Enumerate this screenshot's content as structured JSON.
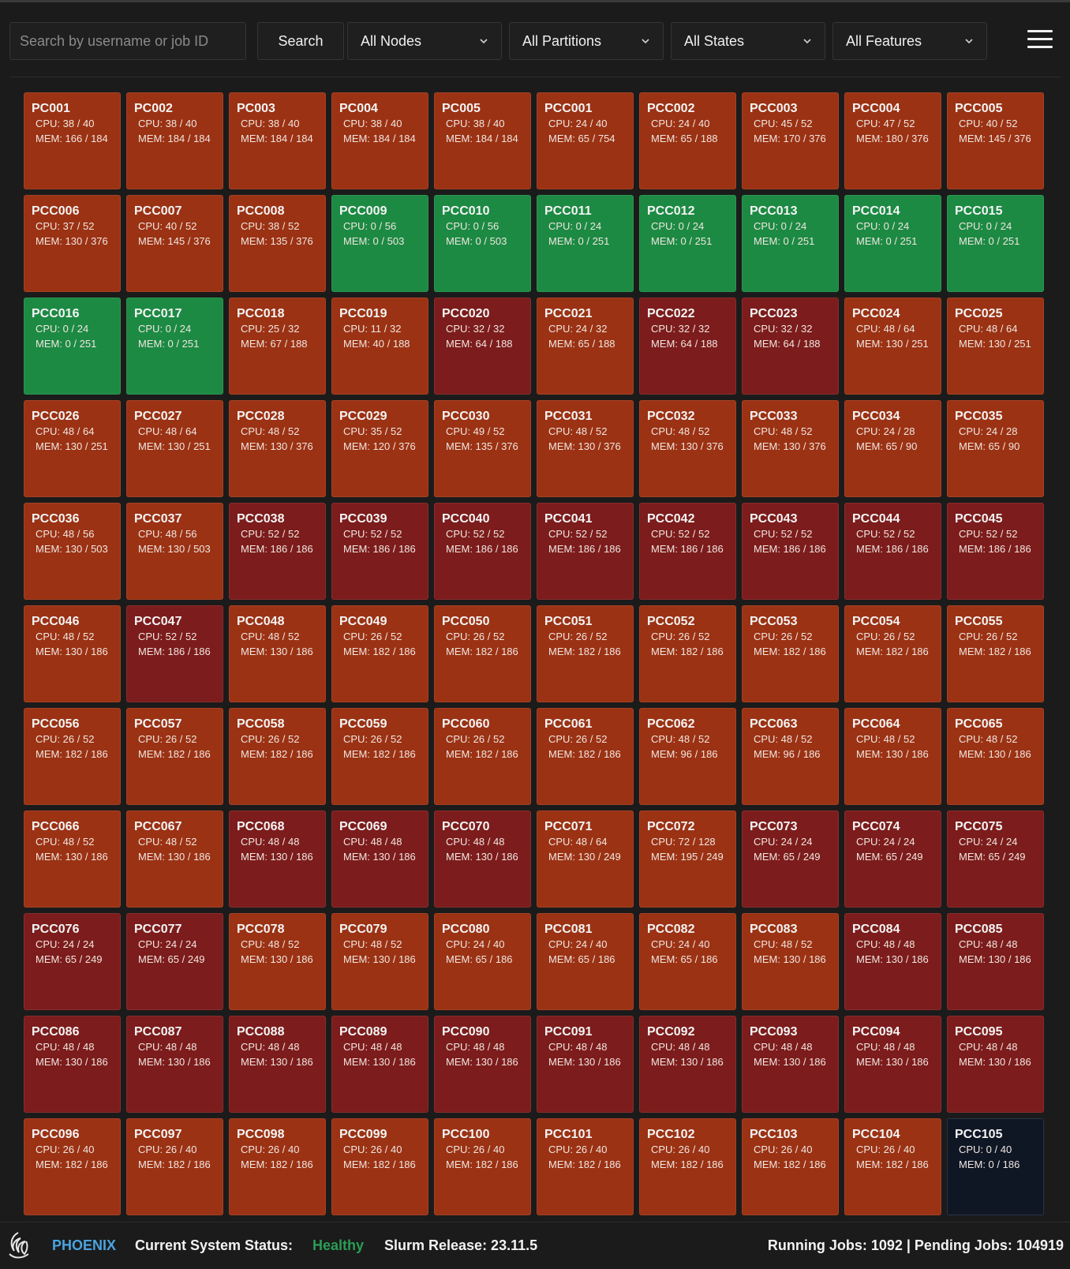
{
  "toolbar": {
    "search_placeholder": "Search by username or job ID",
    "search_label": "Search",
    "filters": [
      "All Nodes",
      "All Partitions",
      "All States",
      "All Features"
    ]
  },
  "colors": {
    "used": "#9b3214",
    "full": "#7c1c1c",
    "idle": "#1c8a43",
    "down": "#0f1725",
    "brand": "#4aa3df",
    "healthy": "#2a9d55"
  },
  "nodes": [
    {
      "name": "PC001",
      "cpu": "CPU: 38 / 40",
      "mem": "MEM: 166 / 184",
      "state": "used"
    },
    {
      "name": "PC002",
      "cpu": "CPU: 38 / 40",
      "mem": "MEM: 184 / 184",
      "state": "used"
    },
    {
      "name": "PC003",
      "cpu": "CPU: 38 / 40",
      "mem": "MEM: 184 / 184",
      "state": "used"
    },
    {
      "name": "PC004",
      "cpu": "CPU: 38 / 40",
      "mem": "MEM: 184 / 184",
      "state": "used"
    },
    {
      "name": "PC005",
      "cpu": "CPU: 38 / 40",
      "mem": "MEM: 184 / 184",
      "state": "used"
    },
    {
      "name": "PCC001",
      "cpu": "CPU: 24 / 40",
      "mem": "MEM: 65 / 754",
      "state": "used"
    },
    {
      "name": "PCC002",
      "cpu": "CPU: 24 / 40",
      "mem": "MEM: 65 / 188",
      "state": "used"
    },
    {
      "name": "PCC003",
      "cpu": "CPU: 45 / 52",
      "mem": "MEM: 170 / 376",
      "state": "used"
    },
    {
      "name": "PCC004",
      "cpu": "CPU: 47 / 52",
      "mem": "MEM: 180 / 376",
      "state": "used"
    },
    {
      "name": "PCC005",
      "cpu": "CPU: 40 / 52",
      "mem": "MEM: 145 / 376",
      "state": "used"
    },
    {
      "name": "PCC006",
      "cpu": "CPU: 37 / 52",
      "mem": "MEM: 130 / 376",
      "state": "used"
    },
    {
      "name": "PCC007",
      "cpu": "CPU: 40 / 52",
      "mem": "MEM: 145 / 376",
      "state": "used"
    },
    {
      "name": "PCC008",
      "cpu": "CPU: 38 / 52",
      "mem": "MEM: 135 / 376",
      "state": "used"
    },
    {
      "name": "PCC009",
      "cpu": "CPU: 0 / 56",
      "mem": "MEM: 0 / 503",
      "state": "idle"
    },
    {
      "name": "PCC010",
      "cpu": "CPU: 0 / 56",
      "mem": "MEM: 0 / 503",
      "state": "idle"
    },
    {
      "name": "PCC011",
      "cpu": "CPU: 0 / 24",
      "mem": "MEM: 0 / 251",
      "state": "idle"
    },
    {
      "name": "PCC012",
      "cpu": "CPU: 0 / 24",
      "mem": "MEM: 0 / 251",
      "state": "idle"
    },
    {
      "name": "PCC013",
      "cpu": "CPU: 0 / 24",
      "mem": "MEM: 0 / 251",
      "state": "idle"
    },
    {
      "name": "PCC014",
      "cpu": "CPU: 0 / 24",
      "mem": "MEM: 0 / 251",
      "state": "idle"
    },
    {
      "name": "PCC015",
      "cpu": "CPU: 0 / 24",
      "mem": "MEM: 0 / 251",
      "state": "idle"
    },
    {
      "name": "PCC016",
      "cpu": "CPU: 0 / 24",
      "mem": "MEM: 0 / 251",
      "state": "idle"
    },
    {
      "name": "PCC017",
      "cpu": "CPU: 0 / 24",
      "mem": "MEM: 0 / 251",
      "state": "idle"
    },
    {
      "name": "PCC018",
      "cpu": "CPU: 25 / 32",
      "mem": "MEM: 67 / 188",
      "state": "used"
    },
    {
      "name": "PCC019",
      "cpu": "CPU: 11 / 32",
      "mem": "MEM: 40 / 188",
      "state": "used"
    },
    {
      "name": "PCC020",
      "cpu": "CPU: 32 / 32",
      "mem": "MEM: 64 / 188",
      "state": "full"
    },
    {
      "name": "PCC021",
      "cpu": "CPU: 24 / 32",
      "mem": "MEM: 65 / 188",
      "state": "used"
    },
    {
      "name": "PCC022",
      "cpu": "CPU: 32 / 32",
      "mem": "MEM: 64 / 188",
      "state": "full"
    },
    {
      "name": "PCC023",
      "cpu": "CPU: 32 / 32",
      "mem": "MEM: 64 / 188",
      "state": "full"
    },
    {
      "name": "PCC024",
      "cpu": "CPU: 48 / 64",
      "mem": "MEM: 130 / 251",
      "state": "used"
    },
    {
      "name": "PCC025",
      "cpu": "CPU: 48 / 64",
      "mem": "MEM: 130 / 251",
      "state": "used"
    },
    {
      "name": "PCC026",
      "cpu": "CPU: 48 / 64",
      "mem": "MEM: 130 / 251",
      "state": "used"
    },
    {
      "name": "PCC027",
      "cpu": "CPU: 48 / 64",
      "mem": "MEM: 130 / 251",
      "state": "used"
    },
    {
      "name": "PCC028",
      "cpu": "CPU: 48 / 52",
      "mem": "MEM: 130 / 376",
      "state": "used"
    },
    {
      "name": "PCC029",
      "cpu": "CPU: 35 / 52",
      "mem": "MEM: 120 / 376",
      "state": "used"
    },
    {
      "name": "PCC030",
      "cpu": "CPU: 49 / 52",
      "mem": "MEM: 135 / 376",
      "state": "used"
    },
    {
      "name": "PCC031",
      "cpu": "CPU: 48 / 52",
      "mem": "MEM: 130 / 376",
      "state": "used"
    },
    {
      "name": "PCC032",
      "cpu": "CPU: 48 / 52",
      "mem": "MEM: 130 / 376",
      "state": "used"
    },
    {
      "name": "PCC033",
      "cpu": "CPU: 48 / 52",
      "mem": "MEM: 130 / 376",
      "state": "used"
    },
    {
      "name": "PCC034",
      "cpu": "CPU: 24 / 28",
      "mem": "MEM: 65 / 90",
      "state": "used"
    },
    {
      "name": "PCC035",
      "cpu": "CPU: 24 / 28",
      "mem": "MEM: 65 / 90",
      "state": "used"
    },
    {
      "name": "PCC036",
      "cpu": "CPU: 48 / 56",
      "mem": "MEM: 130 / 503",
      "state": "used"
    },
    {
      "name": "PCC037",
      "cpu": "CPU: 48 / 56",
      "mem": "MEM: 130 / 503",
      "state": "used"
    },
    {
      "name": "PCC038",
      "cpu": "CPU: 52 / 52",
      "mem": "MEM: 186 / 186",
      "state": "full"
    },
    {
      "name": "PCC039",
      "cpu": "CPU: 52 / 52",
      "mem": "MEM: 186 / 186",
      "state": "full"
    },
    {
      "name": "PCC040",
      "cpu": "CPU: 52 / 52",
      "mem": "MEM: 186 / 186",
      "state": "full"
    },
    {
      "name": "PCC041",
      "cpu": "CPU: 52 / 52",
      "mem": "MEM: 186 / 186",
      "state": "full"
    },
    {
      "name": "PCC042",
      "cpu": "CPU: 52 / 52",
      "mem": "MEM: 186 / 186",
      "state": "full"
    },
    {
      "name": "PCC043",
      "cpu": "CPU: 52 / 52",
      "mem": "MEM: 186 / 186",
      "state": "full"
    },
    {
      "name": "PCC044",
      "cpu": "CPU: 52 / 52",
      "mem": "MEM: 186 / 186",
      "state": "full"
    },
    {
      "name": "PCC045",
      "cpu": "CPU: 52 / 52",
      "mem": "MEM: 186 / 186",
      "state": "full"
    },
    {
      "name": "PCC046",
      "cpu": "CPU: 48 / 52",
      "mem": "MEM: 130 / 186",
      "state": "used"
    },
    {
      "name": "PCC047",
      "cpu": "CPU: 52 / 52",
      "mem": "MEM: 186 / 186",
      "state": "full"
    },
    {
      "name": "PCC048",
      "cpu": "CPU: 48 / 52",
      "mem": "MEM: 130 / 186",
      "state": "used"
    },
    {
      "name": "PCC049",
      "cpu": "CPU: 26 / 52",
      "mem": "MEM: 182 / 186",
      "state": "used"
    },
    {
      "name": "PCC050",
      "cpu": "CPU: 26 / 52",
      "mem": "MEM: 182 / 186",
      "state": "used"
    },
    {
      "name": "PCC051",
      "cpu": "CPU: 26 / 52",
      "mem": "MEM: 182 / 186",
      "state": "used"
    },
    {
      "name": "PCC052",
      "cpu": "CPU: 26 / 52",
      "mem": "MEM: 182 / 186",
      "state": "used"
    },
    {
      "name": "PCC053",
      "cpu": "CPU: 26 / 52",
      "mem": "MEM: 182 / 186",
      "state": "used"
    },
    {
      "name": "PCC054",
      "cpu": "CPU: 26 / 52",
      "mem": "MEM: 182 / 186",
      "state": "used"
    },
    {
      "name": "PCC055",
      "cpu": "CPU: 26 / 52",
      "mem": "MEM: 182 / 186",
      "state": "used"
    },
    {
      "name": "PCC056",
      "cpu": "CPU: 26 / 52",
      "mem": "MEM: 182 / 186",
      "state": "used"
    },
    {
      "name": "PCC057",
      "cpu": "CPU: 26 / 52",
      "mem": "MEM: 182 / 186",
      "state": "used"
    },
    {
      "name": "PCC058",
      "cpu": "CPU: 26 / 52",
      "mem": "MEM: 182 / 186",
      "state": "used"
    },
    {
      "name": "PCC059",
      "cpu": "CPU: 26 / 52",
      "mem": "MEM: 182 / 186",
      "state": "used"
    },
    {
      "name": "PCC060",
      "cpu": "CPU: 26 / 52",
      "mem": "MEM: 182 / 186",
      "state": "used"
    },
    {
      "name": "PCC061",
      "cpu": "CPU: 26 / 52",
      "mem": "MEM: 182 / 186",
      "state": "used"
    },
    {
      "name": "PCC062",
      "cpu": "CPU: 48 / 52",
      "mem": "MEM: 96 / 186",
      "state": "used"
    },
    {
      "name": "PCC063",
      "cpu": "CPU: 48 / 52",
      "mem": "MEM: 96 / 186",
      "state": "used"
    },
    {
      "name": "PCC064",
      "cpu": "CPU: 48 / 52",
      "mem": "MEM: 130 / 186",
      "state": "used"
    },
    {
      "name": "PCC065",
      "cpu": "CPU: 48 / 52",
      "mem": "MEM: 130 / 186",
      "state": "used"
    },
    {
      "name": "PCC066",
      "cpu": "CPU: 48 / 52",
      "mem": "MEM: 130 / 186",
      "state": "used"
    },
    {
      "name": "PCC067",
      "cpu": "CPU: 48 / 52",
      "mem": "MEM: 130 / 186",
      "state": "used"
    },
    {
      "name": "PCC068",
      "cpu": "CPU: 48 / 48",
      "mem": "MEM: 130 / 186",
      "state": "full"
    },
    {
      "name": "PCC069",
      "cpu": "CPU: 48 / 48",
      "mem": "MEM: 130 / 186",
      "state": "full"
    },
    {
      "name": "PCC070",
      "cpu": "CPU: 48 / 48",
      "mem": "MEM: 130 / 186",
      "state": "full"
    },
    {
      "name": "PCC071",
      "cpu": "CPU: 48 / 64",
      "mem": "MEM: 130 / 249",
      "state": "used"
    },
    {
      "name": "PCC072",
      "cpu": "CPU: 72 / 128",
      "mem": "MEM: 195 / 249",
      "state": "used"
    },
    {
      "name": "PCC073",
      "cpu": "CPU: 24 / 24",
      "mem": "MEM: 65 / 249",
      "state": "full"
    },
    {
      "name": "PCC074",
      "cpu": "CPU: 24 / 24",
      "mem": "MEM: 65 / 249",
      "state": "full"
    },
    {
      "name": "PCC075",
      "cpu": "CPU: 24 / 24",
      "mem": "MEM: 65 / 249",
      "state": "full"
    },
    {
      "name": "PCC076",
      "cpu": "CPU: 24 / 24",
      "mem": "MEM: 65 / 249",
      "state": "full"
    },
    {
      "name": "PCC077",
      "cpu": "CPU: 24 / 24",
      "mem": "MEM: 65 / 249",
      "state": "full"
    },
    {
      "name": "PCC078",
      "cpu": "CPU: 48 / 52",
      "mem": "MEM: 130 / 186",
      "state": "used"
    },
    {
      "name": "PCC079",
      "cpu": "CPU: 48 / 52",
      "mem": "MEM: 130 / 186",
      "state": "used"
    },
    {
      "name": "PCC080",
      "cpu": "CPU: 24 / 40",
      "mem": "MEM: 65 / 186",
      "state": "used"
    },
    {
      "name": "PCC081",
      "cpu": "CPU: 24 / 40",
      "mem": "MEM: 65 / 186",
      "state": "used"
    },
    {
      "name": "PCC082",
      "cpu": "CPU: 24 / 40",
      "mem": "MEM: 65 / 186",
      "state": "used"
    },
    {
      "name": "PCC083",
      "cpu": "CPU: 48 / 52",
      "mem": "MEM: 130 / 186",
      "state": "used"
    },
    {
      "name": "PCC084",
      "cpu": "CPU: 48 / 48",
      "mem": "MEM: 130 / 186",
      "state": "full"
    },
    {
      "name": "PCC085",
      "cpu": "CPU: 48 / 48",
      "mem": "MEM: 130 / 186",
      "state": "full"
    },
    {
      "name": "PCC086",
      "cpu": "CPU: 48 / 48",
      "mem": "MEM: 130 / 186",
      "state": "full"
    },
    {
      "name": "PCC087",
      "cpu": "CPU: 48 / 48",
      "mem": "MEM: 130 / 186",
      "state": "full"
    },
    {
      "name": "PCC088",
      "cpu": "CPU: 48 / 48",
      "mem": "MEM: 130 / 186",
      "state": "full"
    },
    {
      "name": "PCC089",
      "cpu": "CPU: 48 / 48",
      "mem": "MEM: 130 / 186",
      "state": "full"
    },
    {
      "name": "PCC090",
      "cpu": "CPU: 48 / 48",
      "mem": "MEM: 130 / 186",
      "state": "full"
    },
    {
      "name": "PCC091",
      "cpu": "CPU: 48 / 48",
      "mem": "MEM: 130 / 186",
      "state": "full"
    },
    {
      "name": "PCC092",
      "cpu": "CPU: 48 / 48",
      "mem": "MEM: 130 / 186",
      "state": "full"
    },
    {
      "name": "PCC093",
      "cpu": "CPU: 48 / 48",
      "mem": "MEM: 130 / 186",
      "state": "full"
    },
    {
      "name": "PCC094",
      "cpu": "CPU: 48 / 48",
      "mem": "MEM: 130 / 186",
      "state": "full"
    },
    {
      "name": "PCC095",
      "cpu": "CPU: 48 / 48",
      "mem": "MEM: 130 / 186",
      "state": "full"
    },
    {
      "name": "PCC096",
      "cpu": "CPU: 26 / 40",
      "mem": "MEM: 182 / 186",
      "state": "used"
    },
    {
      "name": "PCC097",
      "cpu": "CPU: 26 / 40",
      "mem": "MEM: 182 / 186",
      "state": "used"
    },
    {
      "name": "PCC098",
      "cpu": "CPU: 26 / 40",
      "mem": "MEM: 182 / 186",
      "state": "used"
    },
    {
      "name": "PCC099",
      "cpu": "CPU: 26 / 40",
      "mem": "MEM: 182 / 186",
      "state": "used"
    },
    {
      "name": "PCC100",
      "cpu": "CPU: 26 / 40",
      "mem": "MEM: 182 / 186",
      "state": "used"
    },
    {
      "name": "PCC101",
      "cpu": "CPU: 26 / 40",
      "mem": "MEM: 182 / 186",
      "state": "used"
    },
    {
      "name": "PCC102",
      "cpu": "CPU: 26 / 40",
      "mem": "MEM: 182 / 186",
      "state": "used"
    },
    {
      "name": "PCC103",
      "cpu": "CPU: 26 / 40",
      "mem": "MEM: 182 / 186",
      "state": "used"
    },
    {
      "name": "PCC104",
      "cpu": "CPU: 26 / 40",
      "mem": "MEM: 182 / 186",
      "state": "used"
    },
    {
      "name": "PCC105",
      "cpu": "CPU: 0 / 40",
      "mem": "MEM: 0 / 186",
      "state": "down"
    }
  ],
  "footer": {
    "brand": "PHOENIX",
    "status_label": "Current System Status:",
    "status_value": "Healthy",
    "slurm_release": "Slurm Release: 23.11.5",
    "jobs": "Running Jobs: 1092 | Pending Jobs: 104919"
  }
}
